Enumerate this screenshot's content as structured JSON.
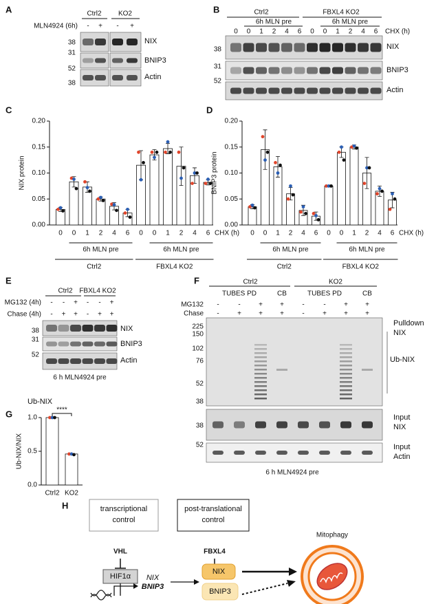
{
  "panel_labels": [
    "A",
    "B",
    "C",
    "D",
    "E",
    "F",
    "G",
    "H"
  ],
  "panel_a": {
    "groups": [
      "Ctrl2",
      "KO2"
    ],
    "treatment": "MLN4924 (6h)",
    "signs": [
      "-",
      "+",
      "-",
      "+"
    ],
    "bands": [
      "NIX",
      "BNIP3",
      "Actin"
    ],
    "markers": [
      "38",
      "31",
      "52",
      "38"
    ]
  },
  "panel_b": {
    "groups": [
      "Ctrl2",
      "FBXL4 KO2"
    ],
    "pretreatment": [
      "6h MLN pre",
      "6h MLN pre"
    ],
    "chx": [
      "0",
      "0",
      "1",
      "2",
      "4",
      "6",
      "0",
      "0",
      "1",
      "2",
      "4",
      "6"
    ],
    "chx_label": "CHX (h)",
    "bands": [
      "NIX",
      "BNIP3",
      "Actin"
    ],
    "markers": [
      "38",
      "31",
      "52"
    ]
  },
  "chart_data": [
    {
      "type": "bar",
      "ylabel": "NIX protein",
      "xlabel": "CHX (h)",
      "categories": [
        "0",
        "0",
        "1",
        "2",
        "4",
        "6",
        "0",
        "0",
        "1",
        "2",
        "4",
        "6"
      ],
      "values": [
        0.03,
        0.083,
        0.073,
        0.05,
        0.036,
        0.023,
        0.115,
        0.135,
        0.147,
        0.113,
        0.095,
        0.082
      ],
      "errors": [
        0.004,
        0.01,
        0.01,
        0.004,
        0.007,
        0.007,
        0.028,
        0.01,
        0.01,
        0.037,
        0.015,
        0.005
      ],
      "points": [
        [
          0.03,
          0.033,
          0.027
        ],
        [
          0.09,
          0.088,
          0.07
        ],
        [
          0.083,
          0.072,
          0.065
        ],
        [
          0.05,
          0.053,
          0.047
        ],
        [
          0.04,
          0.039,
          0.028
        ],
        [
          0.023,
          0.03,
          0.015
        ],
        [
          0.14,
          0.087,
          0.12
        ],
        [
          0.14,
          0.13,
          0.14
        ],
        [
          0.14,
          0.16,
          0.14
        ],
        [
          0.14,
          0.09,
          0.11
        ],
        [
          0.08,
          0.1,
          0.1
        ],
        [
          0.08,
          0.088,
          0.08
        ]
      ],
      "point_colors": [
        "#e0452b",
        "#2b5fb4",
        "#111111"
      ],
      "color": "#ffffff",
      "subgroup_labels": [
        "6h MLN pre",
        "6h MLN pre"
      ],
      "group_labels": [
        "Ctrl2",
        "FBXL4 KO2"
      ],
      "ylim": [
        0,
        0.2
      ],
      "yticks": [
        {
          "value": 0,
          "label": "0.00"
        },
        0.05,
        {
          "value": 0.1,
          "label": "0.10"
        },
        0.15,
        {
          "value": 0.2,
          "label": "0.20"
        }
      ]
    },
    {
      "type": "bar",
      "ylabel": "BNIP3 protein",
      "xlabel": "CHX (h)",
      "categories": [
        "0",
        "0",
        "1",
        "2",
        "4",
        "6",
        "0",
        "0",
        "1",
        "2",
        "4",
        "6"
      ],
      "values": [
        0.035,
        0.145,
        0.112,
        0.06,
        0.028,
        0.017,
        0.075,
        0.14,
        0.15,
        0.1,
        0.065,
        0.048
      ],
      "errors": [
        0.004,
        0.038,
        0.02,
        0.012,
        0.01,
        0.008,
        0.001,
        0.01,
        0.004,
        0.03,
        0.01,
        0.015
      ],
      "points": [
        [
          0.035,
          0.038,
          0.033
        ],
        [
          0.17,
          0.125,
          0.14
        ],
        [
          0.12,
          0.1,
          0.115
        ],
        [
          0.05,
          0.075,
          0.058
        ],
        [
          0.025,
          0.035,
          0.022
        ],
        [
          0.022,
          0.018,
          0.01
        ],
        [
          0.075,
          0.075,
          0.075
        ],
        [
          0.14,
          0.15,
          0.125
        ],
        [
          0.15,
          0.152,
          0.148
        ],
        [
          0.08,
          0.11,
          0.11
        ],
        [
          0.06,
          0.07,
          0.065
        ],
        [
          0.03,
          0.06,
          0.05
        ]
      ],
      "point_colors": [
        "#e0452b",
        "#2b5fb4",
        "#111111"
      ],
      "color": "#ffffff",
      "subgroup_labels": [
        "6h MLN pre",
        "6h MLN pre"
      ],
      "group_labels": [
        "Ctrl2",
        "FBXL4 KO2"
      ],
      "ylim": [
        0,
        0.2
      ],
      "yticks": [
        {
          "value": 0,
          "label": "0.00"
        },
        0.05,
        {
          "value": 0.1,
          "label": "0.10"
        },
        0.15,
        {
          "value": 0.2,
          "label": "0.20"
        }
      ]
    },
    {
      "type": "bar",
      "title": "Ub-NIX",
      "ylabel": "Ub-NIX/NIX",
      "annotation": "****",
      "categories": [
        "Ctrl2",
        "KO2"
      ],
      "values": [
        1.0,
        0.46
      ],
      "points": [
        [
          1.0,
          1.0,
          1.0
        ],
        [
          0.46,
          0.46,
          0.45
        ]
      ],
      "point_colors": [
        "#e0452b",
        "#2b5fb4",
        "#111111"
      ],
      "color": "#ffffff",
      "ylim": [
        0,
        1.0
      ],
      "yticks": [
        {
          "value": 0,
          "label": "0.0"
        },
        0.5,
        {
          "value": 1,
          "label": "1.0"
        }
      ]
    }
  ],
  "panel_e": {
    "groups": [
      "Ctrl2",
      "FBXL4 KO2"
    ],
    "rows": [
      {
        "label": "MG132 (4h)",
        "signs": [
          "-",
          "-",
          "+",
          "-",
          "-",
          "+"
        ]
      },
      {
        "label": "Chase (4h)",
        "signs": [
          "-",
          "+",
          "+",
          "-",
          "+",
          "+"
        ]
      }
    ],
    "bands": [
      "NIX",
      "BNIP3",
      "Actin"
    ],
    "markers": [
      "38",
      "31",
      "52"
    ],
    "caption": "6 h MLN4924 pre"
  },
  "panel_f": {
    "groups": [
      "Ctrl2",
      "KO2"
    ],
    "lanes": [
      "TUBES PD",
      "CB",
      "TUBES PD",
      "CB"
    ],
    "rows": [
      {
        "label": "MG132",
        "signs": [
          "-",
          "-",
          "+",
          "+",
          "-",
          "-",
          "+",
          "+"
        ]
      },
      {
        "label": "Chase",
        "signs": [
          "-",
          "+",
          "+",
          "+",
          "-",
          "+",
          "+",
          "+"
        ]
      }
    ],
    "pulldown_markers": [
      "225",
      "150",
      "102",
      "76",
      "52",
      "38"
    ],
    "input_markers": [
      "38",
      "52"
    ],
    "labels": [
      "Pulldown",
      "NIX",
      "Ub-NIX",
      "Input",
      "NIX",
      "Input",
      "Actin"
    ],
    "caption": "6 h MLN4924 pre"
  },
  "panel_h": {
    "transcriptional": [
      "transcriptional",
      "control"
    ],
    "post_translational": [
      "post-translational",
      "control"
    ],
    "vhl": "VHL",
    "fbxl4": "FBXL4",
    "hif": "HIF1α",
    "genes": [
      "NIX",
      "BNIP3"
    ],
    "proteins": [
      "NIX",
      "BNIP3"
    ],
    "outcome": "Mitophagy"
  }
}
